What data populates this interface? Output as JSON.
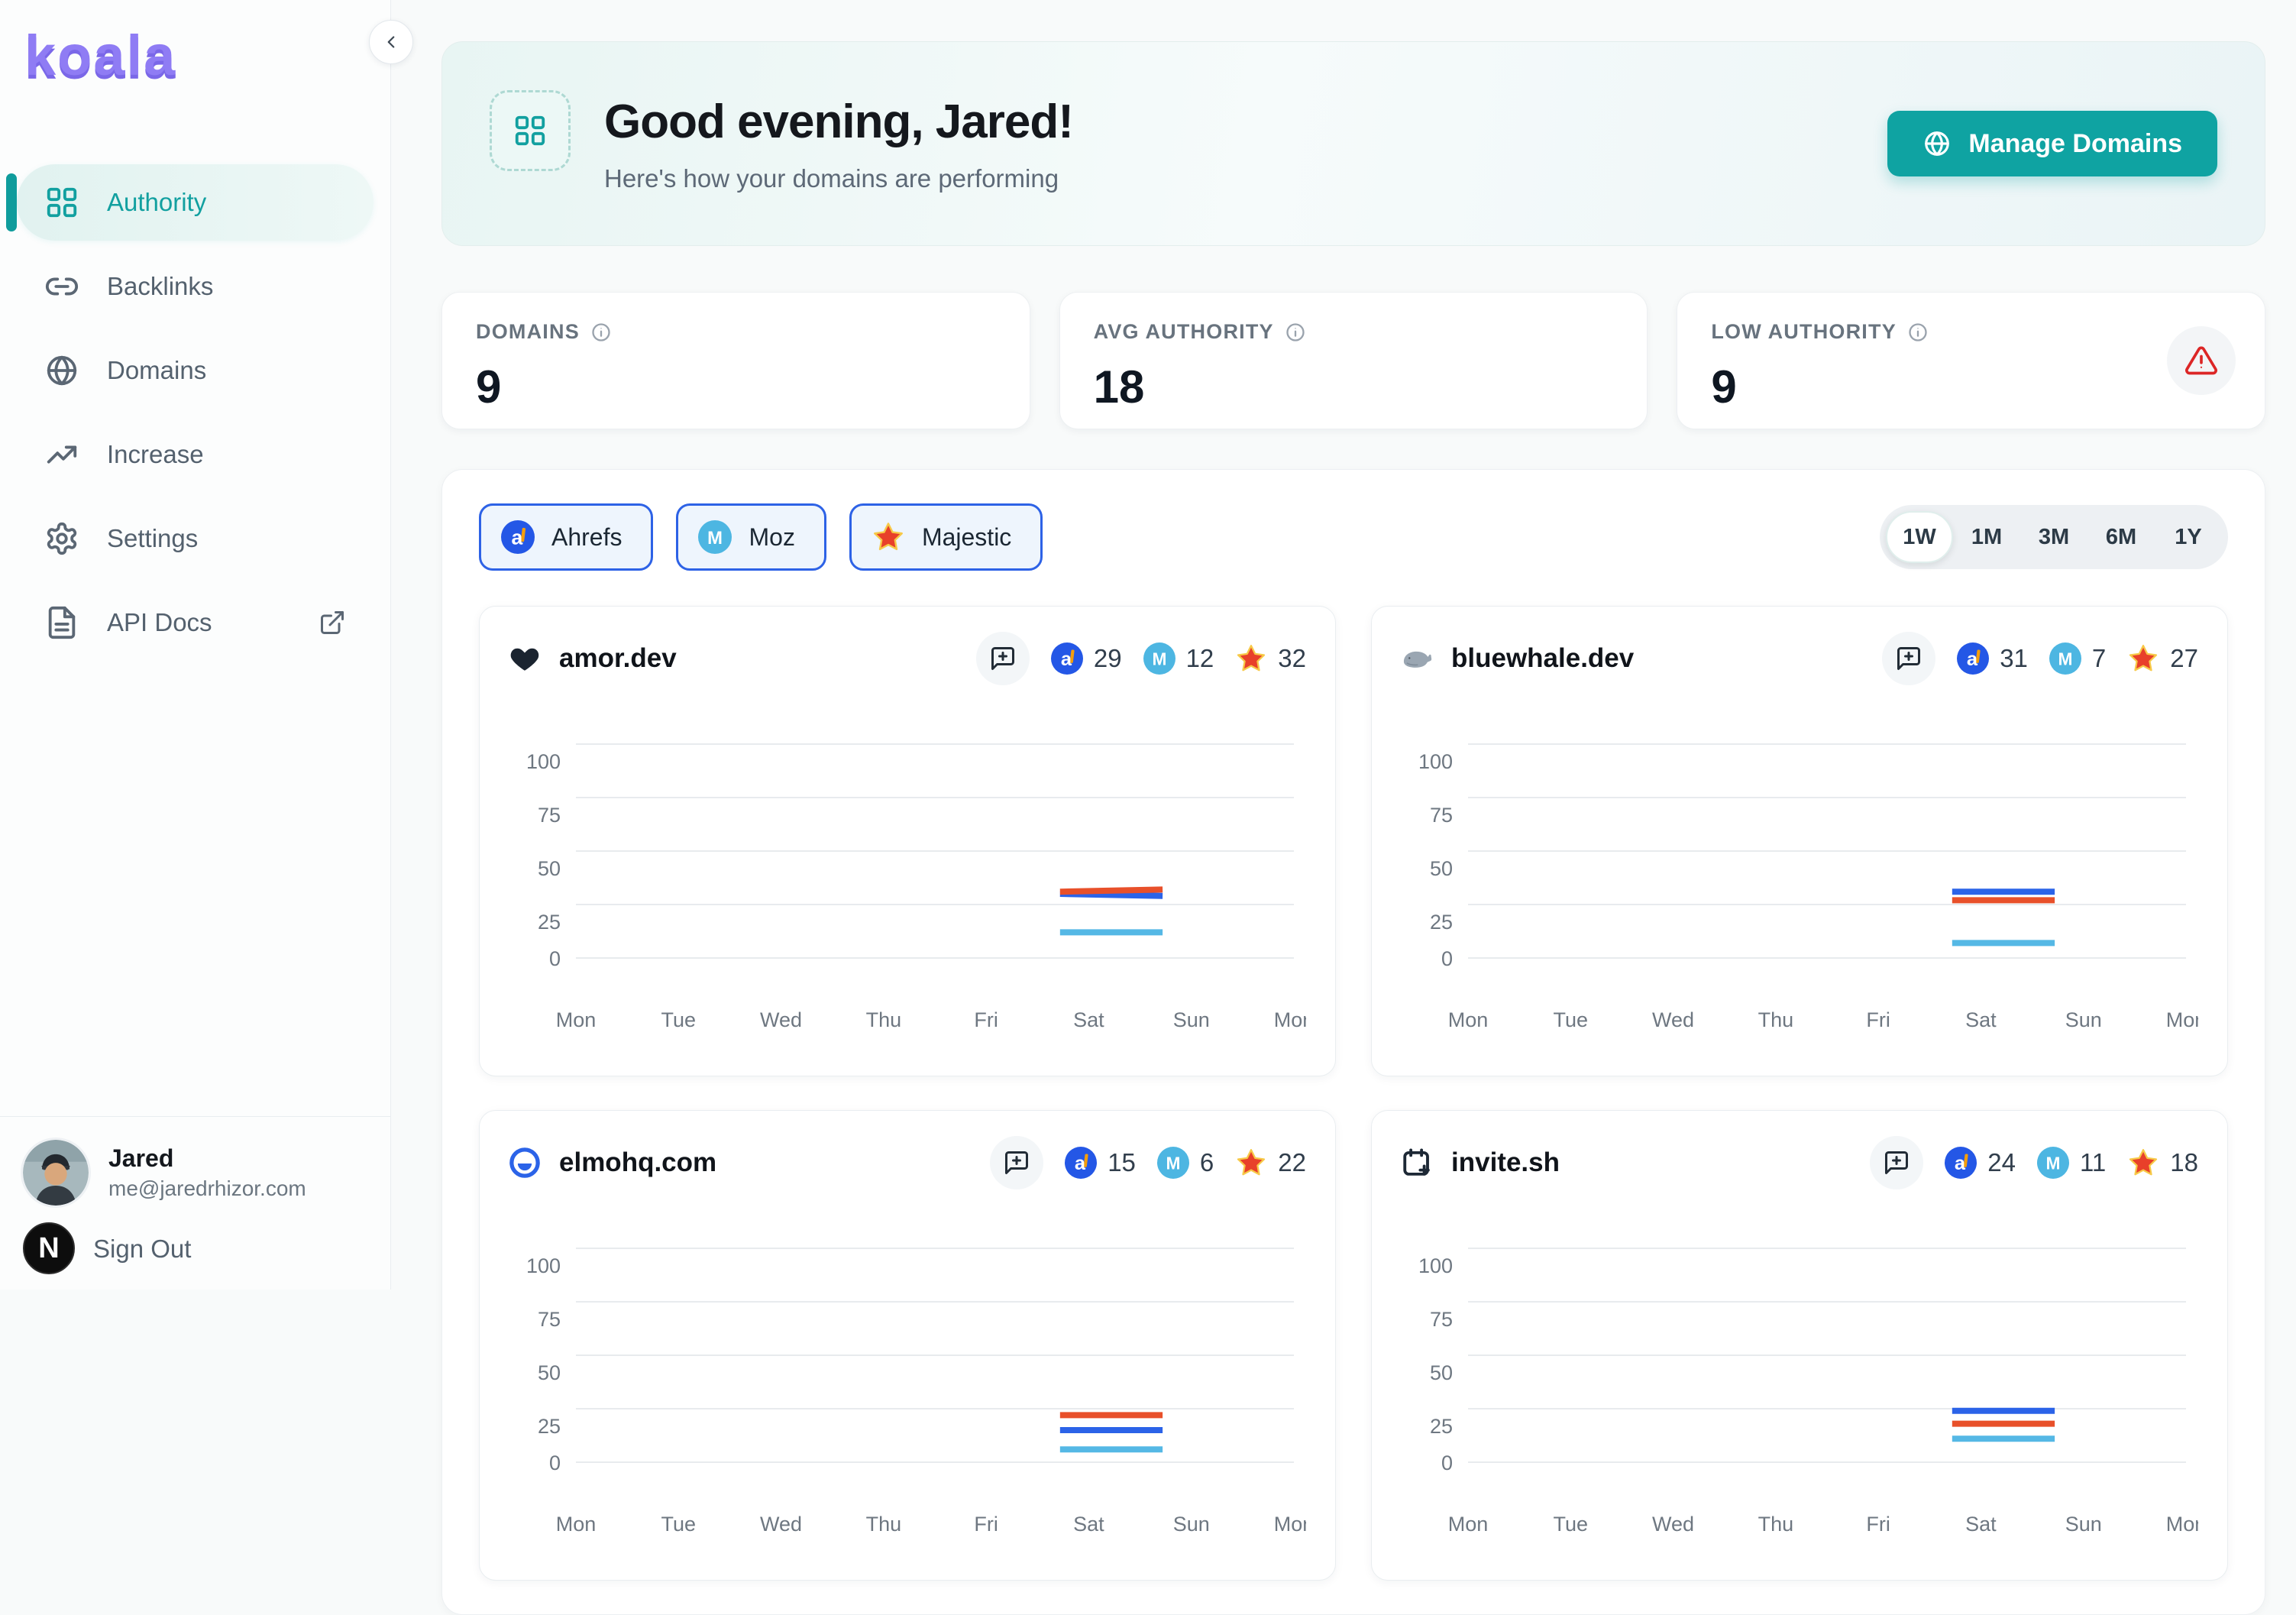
{
  "app": {
    "logo_text": "koala"
  },
  "sidebar": {
    "nav_items": [
      {
        "label": "Authority",
        "icon": "grid",
        "active": true,
        "external": false
      },
      {
        "label": "Backlinks",
        "icon": "link",
        "active": false,
        "external": false
      },
      {
        "label": "Domains",
        "icon": "globe",
        "active": false,
        "external": false
      },
      {
        "label": "Increase",
        "icon": "trending-up",
        "active": false,
        "external": false
      },
      {
        "label": "Settings",
        "icon": "gear",
        "active": false,
        "external": false
      },
      {
        "label": "API Docs",
        "icon": "file-text",
        "active": false,
        "external": true
      }
    ],
    "user": {
      "name": "Jared",
      "email": "me@jaredrhizor.com"
    },
    "sign_out_label": "Sign Out",
    "n_badge": "N"
  },
  "greeting": {
    "title": "Good evening, Jared!",
    "subtitle": "Here's how your domains are performing",
    "manage_domains_label": "Manage Domains"
  },
  "stats": [
    {
      "label": "DOMAINS",
      "value": "9",
      "warning": false
    },
    {
      "label": "AVG AUTHORITY",
      "value": "18",
      "warning": false
    },
    {
      "label": "LOW AUTHORITY",
      "value": "9",
      "warning": true
    }
  ],
  "providers": [
    {
      "name": "Ahrefs",
      "key": "ahrefs",
      "badge_color": "#2457e6",
      "line_color": "#2b63e8"
    },
    {
      "name": "Moz",
      "key": "moz",
      "badge_color": "#4db6e2",
      "line_color": "#55b8e5"
    },
    {
      "name": "Majestic",
      "key": "majestic",
      "badge_color": "#e8402a",
      "line_color": "#e8502a"
    }
  ],
  "time_ranges": {
    "options": [
      "1W",
      "1M",
      "3M",
      "6M",
      "1Y"
    ],
    "active": "1W"
  },
  "colors": {
    "accent_teal": "#0fa3a2",
    "logo_purple": "#8f7cf4",
    "warning_red": "#dc2626",
    "chip_border_blue": "#2d62e6",
    "grid_line": "#e8ebee",
    "axis_text": "#6e7781"
  },
  "chart_data": [
    {
      "type": "line",
      "domain": "amor.dev",
      "icon": "heart",
      "scores": {
        "ahrefs": 29,
        "moz": 12,
        "majestic": 32
      },
      "x_labels": [
        "Mon",
        "Tue",
        "Wed",
        "Thu",
        "Fri",
        "Sat",
        "Sun",
        "Mon"
      ],
      "y_ticks": [
        0,
        25,
        50,
        75,
        100
      ],
      "ylim": [
        0,
        100
      ],
      "grid": true,
      "legend": "none",
      "series": [
        {
          "name": "Ahrefs",
          "color": "#2b63e8",
          "points": [
            {
              "day": "Sat",
              "value": 30
            },
            {
              "day": "Sun",
              "value": 29
            }
          ]
        },
        {
          "name": "Moz",
          "color": "#55b8e5",
          "points": [
            {
              "day": "Sat",
              "value": 12
            },
            {
              "day": "Sun",
              "value": 12
            }
          ]
        },
        {
          "name": "Majestic",
          "color": "#e8502a",
          "points": [
            {
              "day": "Sat",
              "value": 31
            },
            {
              "day": "Sun",
              "value": 32
            }
          ]
        }
      ]
    },
    {
      "type": "line",
      "domain": "bluewhale.dev",
      "icon": "whale",
      "scores": {
        "ahrefs": 31,
        "moz": 7,
        "majestic": 27
      },
      "x_labels": [
        "Mon",
        "Tue",
        "Wed",
        "Thu",
        "Fri",
        "Sat",
        "Sun",
        "Mon"
      ],
      "y_ticks": [
        0,
        25,
        50,
        75,
        100
      ],
      "ylim": [
        0,
        100
      ],
      "grid": true,
      "legend": "none",
      "series": [
        {
          "name": "Ahrefs",
          "color": "#2b63e8",
          "points": [
            {
              "day": "Sat",
              "value": 31
            },
            {
              "day": "Sun",
              "value": 31
            }
          ]
        },
        {
          "name": "Moz",
          "color": "#55b8e5",
          "points": [
            {
              "day": "Sat",
              "value": 7
            },
            {
              "day": "Sun",
              "value": 7
            }
          ]
        },
        {
          "name": "Majestic",
          "color": "#e8502a",
          "points": [
            {
              "day": "Sat",
              "value": 27
            },
            {
              "day": "Sun",
              "value": 27
            }
          ]
        }
      ]
    },
    {
      "type": "line",
      "domain": "elmohq.com",
      "icon": "elmo",
      "scores": {
        "ahrefs": 15,
        "moz": 6,
        "majestic": 22
      },
      "x_labels": [
        "Mon",
        "Tue",
        "Wed",
        "Thu",
        "Fri",
        "Sat",
        "Sun",
        "Mon"
      ],
      "y_ticks": [
        0,
        25,
        50,
        75,
        100
      ],
      "ylim": [
        0,
        100
      ],
      "grid": true,
      "legend": "none",
      "series": [
        {
          "name": "Ahrefs",
          "color": "#2b63e8",
          "points": [
            {
              "day": "Sat",
              "value": 15
            },
            {
              "day": "Sun",
              "value": 15
            }
          ]
        },
        {
          "name": "Moz",
          "color": "#55b8e5",
          "points": [
            {
              "day": "Sat",
              "value": 6
            },
            {
              "day": "Sun",
              "value": 6
            }
          ]
        },
        {
          "name": "Majestic",
          "color": "#e8502a",
          "points": [
            {
              "day": "Sat",
              "value": 22
            },
            {
              "day": "Sun",
              "value": 22
            }
          ]
        }
      ]
    },
    {
      "type": "line",
      "domain": "invite.sh",
      "icon": "calendar-plus",
      "scores": {
        "ahrefs": 24,
        "moz": 11,
        "majestic": 18
      },
      "x_labels": [
        "Mon",
        "Tue",
        "Wed",
        "Thu",
        "Fri",
        "Sat",
        "Sun",
        "Mon"
      ],
      "y_ticks": [
        0,
        25,
        50,
        75,
        100
      ],
      "ylim": [
        0,
        100
      ],
      "grid": true,
      "legend": "none",
      "series": [
        {
          "name": "Ahrefs",
          "color": "#2b63e8",
          "points": [
            {
              "day": "Sat",
              "value": 24
            },
            {
              "day": "Sun",
              "value": 24
            }
          ]
        },
        {
          "name": "Moz",
          "color": "#55b8e5",
          "points": [
            {
              "day": "Sat",
              "value": 11
            },
            {
              "day": "Sun",
              "value": 11
            }
          ]
        },
        {
          "name": "Majestic",
          "color": "#e8502a",
          "points": [
            {
              "day": "Sat",
              "value": 18
            },
            {
              "day": "Sun",
              "value": 18
            }
          ]
        }
      ]
    }
  ]
}
